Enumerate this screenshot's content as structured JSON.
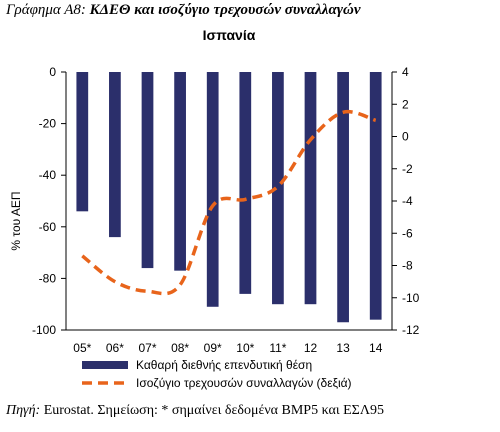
{
  "figure": {
    "label": "Γράφημα Α8:",
    "title": "ΚΔΕΘ και ισοζύγιο τρεχουσών συναλλαγών"
  },
  "source": {
    "label": "Πηγή:",
    "text": "Eurostat. Σημείωση: * σημαίνει δεδομένα BMP5 και ΕΣΛ95"
  },
  "chart_data": {
    "type": "bar",
    "title": "Ισπανία",
    "categories": [
      "05*",
      "06*",
      "07*",
      "08*",
      "09*",
      "10*",
      "11*",
      "12",
      "13",
      "14"
    ],
    "ylabel": "% του ΑΕΠ",
    "y2label": "",
    "ylim": [
      -100,
      0
    ],
    "y2lim": [
      -12,
      4
    ],
    "yticks": [
      0,
      -20,
      -40,
      -60,
      -80,
      -100
    ],
    "y2ticks": [
      4,
      2,
      0,
      -2,
      -4,
      -6,
      -8,
      -10,
      -12
    ],
    "series": [
      {
        "name": "Καθαρή διεθνής επενδυτική θέση",
        "type": "bar",
        "axis": "left",
        "color": "#2b2f6b",
        "values": [
          -54,
          -64,
          -76,
          -77,
          -91,
          -86,
          -90,
          -90,
          -97,
          -96
        ]
      },
      {
        "name": "Ισοζύγιο τρεχουσών συναλλαγών (δεξιά)",
        "type": "line",
        "axis": "right",
        "style": "dashed",
        "color": "#e8641b",
        "values": [
          -7.4,
          -9.0,
          -9.6,
          -9.2,
          -4.3,
          -3.9,
          -3.1,
          -0.2,
          1.5,
          1.0
        ]
      }
    ],
    "grid": false,
    "legend": "bottom"
  }
}
